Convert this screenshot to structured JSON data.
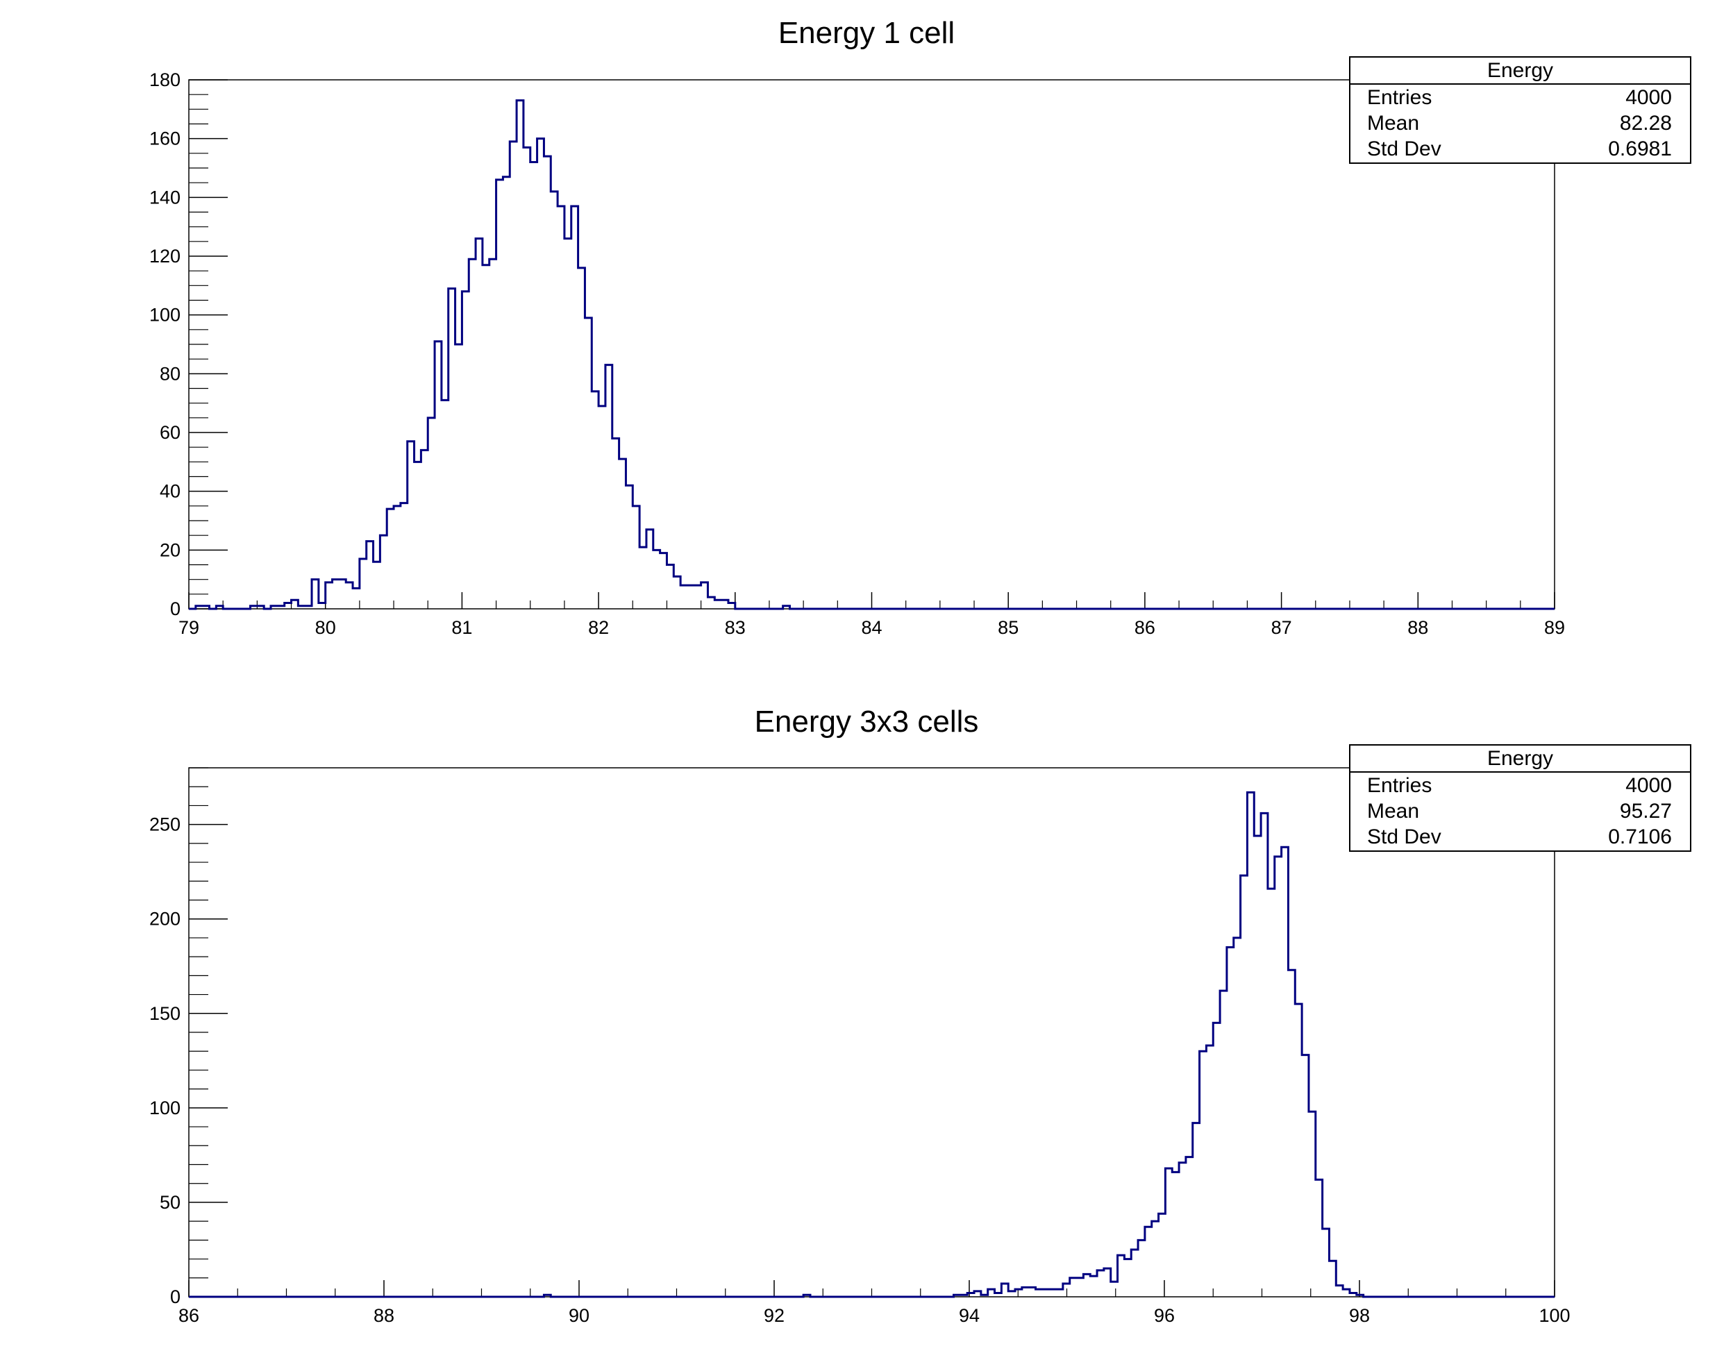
{
  "colors": {
    "line": "#000080",
    "frame": "#000000",
    "background": "#ffffff"
  },
  "chart_data": [
    {
      "type": "histogram",
      "title": "Energy 1 cell",
      "xlabel": "",
      "ylabel": "",
      "xlim": [
        79,
        89
      ],
      "ylim": [
        0,
        180
      ],
      "xticks": [
        79,
        80,
        81,
        82,
        83,
        84,
        85,
        86,
        87,
        88,
        89
      ],
      "yticks": [
        0,
        20,
        40,
        60,
        80,
        100,
        120,
        140,
        160,
        180
      ],
      "bin_width": 0.05,
      "bin_start": 79.0,
      "values": [
        0,
        1,
        1,
        0,
        1,
        0,
        0,
        0,
        0,
        1,
        1,
        0,
        1,
        1,
        2,
        3,
        1,
        1,
        10,
        2,
        9,
        10,
        10,
        9,
        7,
        17,
        23,
        16,
        25,
        34,
        35,
        36,
        57,
        50,
        54,
        65,
        91,
        71,
        109,
        90,
        108,
        119,
        126,
        117,
        119,
        146,
        147,
        159,
        173,
        157,
        152,
        160,
        154,
        142,
        137,
        126,
        137,
        116,
        99,
        74,
        69,
        83,
        58,
        51,
        42,
        35,
        21,
        27,
        20,
        19,
        15,
        11,
        8,
        8,
        8,
        9,
        4,
        3,
        3,
        2,
        0,
        0,
        0,
        0,
        0,
        0,
        0,
        1,
        0,
        0,
        0,
        0,
        0,
        0,
        0,
        0,
        0,
        0,
        0,
        0,
        0,
        0,
        0,
        0,
        0,
        0,
        0,
        0,
        0,
        0,
        0,
        0,
        0,
        0,
        0,
        0,
        0,
        0,
        0,
        0,
        0,
        0,
        0,
        0,
        0,
        0,
        0,
        0,
        0,
        0,
        0,
        0,
        0,
        0,
        0,
        0,
        0,
        0,
        0,
        0,
        0,
        0,
        0,
        0,
        0,
        0,
        0,
        0,
        0,
        0,
        0,
        0,
        0,
        0,
        0,
        0,
        0,
        0,
        0,
        0,
        0,
        0,
        0,
        0,
        0,
        0,
        0,
        0,
        0,
        0,
        0,
        0,
        0,
        0,
        0,
        0,
        0,
        0,
        0,
        0,
        0,
        0,
        0,
        0,
        0,
        0,
        0,
        0,
        0,
        0,
        0,
        0,
        0,
        0,
        0,
        0,
        0,
        0,
        0,
        0
      ],
      "stats": {
        "title": "Energy",
        "rows": [
          {
            "label": "Entries",
            "value": "4000"
          },
          {
            "label": "Mean",
            "value": "82.28"
          },
          {
            "label": "Std Dev",
            "value": "0.6981"
          }
        ]
      }
    },
    {
      "type": "histogram",
      "title": "Energy 3x3 cells",
      "xlabel": "",
      "ylabel": "",
      "xlim": [
        86,
        100
      ],
      "ylim": [
        0,
        280
      ],
      "xticks": [
        86,
        88,
        90,
        92,
        94,
        96,
        98,
        100
      ],
      "yticks": [
        0,
        50,
        100,
        150,
        200,
        250
      ],
      "bin_width": 0.07,
      "bin_start": 86.0,
      "values": [
        0,
        0,
        0,
        0,
        0,
        0,
        0,
        0,
        0,
        0,
        0,
        0,
        0,
        0,
        0,
        0,
        0,
        0,
        0,
        0,
        0,
        0,
        0,
        0,
        0,
        0,
        0,
        0,
        0,
        0,
        0,
        0,
        0,
        0,
        0,
        0,
        0,
        0,
        0,
        0,
        0,
        0,
        0,
        0,
        0,
        0,
        0,
        0,
        0,
        0,
        0,
        0,
        1,
        0,
        0,
        0,
        0,
        0,
        0,
        0,
        0,
        0,
        0,
        0,
        0,
        0,
        0,
        0,
        0,
        0,
        0,
        0,
        0,
        0,
        0,
        0,
        0,
        0,
        0,
        0,
        0,
        0,
        0,
        0,
        0,
        0,
        0,
        0,
        0,
        0,
        1,
        0,
        0,
        0,
        0,
        0,
        0,
        0,
        0,
        0,
        0,
        0,
        0,
        0,
        0,
        0,
        0,
        0,
        0,
        0,
        0,
        0,
        1,
        1,
        2,
        3,
        1,
        4,
        2,
        7,
        3,
        4,
        5,
        5,
        4,
        4,
        4,
        4,
        7,
        10,
        10,
        12,
        11,
        14,
        15,
        8,
        22,
        20,
        25,
        30,
        37,
        40,
        44,
        68,
        66,
        71,
        74,
        92,
        130,
        133,
        145,
        162,
        185,
        190,
        223,
        267,
        244,
        256,
        216,
        233,
        238,
        173,
        155,
        128,
        98,
        62,
        36,
        19,
        6,
        4,
        2,
        1,
        0,
        0,
        0,
        0,
        0,
        0,
        0,
        0,
        0,
        0,
        0,
        0,
        0,
        0,
        0,
        0,
        0,
        0,
        0,
        0,
        0,
        0,
        0,
        0,
        0,
        0,
        0,
        0
      ],
      "stats": {
        "title": "Energy",
        "rows": [
          {
            "label": "Entries",
            "value": "4000"
          },
          {
            "label": "Mean",
            "value": "95.27"
          },
          {
            "label": "Std Dev",
            "value": "0.7106"
          }
        ]
      }
    }
  ]
}
